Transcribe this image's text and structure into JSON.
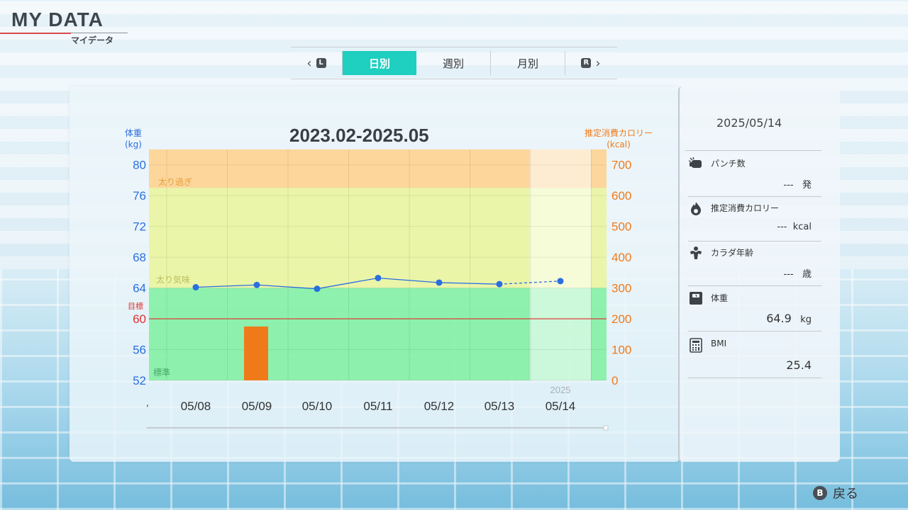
{
  "header": {
    "title": "MY DATA",
    "subtitle": "マイデータ"
  },
  "tabs": {
    "prev_key": "L",
    "next_key": "R",
    "items": [
      {
        "label": "日別",
        "active": true
      },
      {
        "label": "週別",
        "active": false
      },
      {
        "label": "月別",
        "active": false
      }
    ]
  },
  "chart": {
    "title": "2023.02-2025.05",
    "left_axis_label_1": "体重",
    "left_axis_label_2": "(kg)",
    "right_axis_label_1": "推定消費カロリー",
    "right_axis_label_2": "(kcal)",
    "goal_label": "目標",
    "year_label": "2025",
    "zone_labels": {
      "over": "太り過ぎ",
      "slight": "太り気味",
      "normal": "標準"
    },
    "colors": {
      "weight": "#2a6ee0",
      "calorie": "#f07a1a",
      "goal": "#e03030",
      "over": "#ffd08a",
      "slight": "#eaf59a",
      "normal": "#7ef0a0"
    }
  },
  "chart_data": {
    "type": "line",
    "title": "2023.02-2025.05",
    "x": [
      "05/08",
      "05/09",
      "05/10",
      "05/11",
      "05/12",
      "05/13",
      "05/14"
    ],
    "left_ticks": [
      "80",
      "76",
      "72",
      "68",
      "64",
      "60",
      "56",
      "52"
    ],
    "right_ticks": [
      "700",
      "600",
      "500",
      "400",
      "300",
      "200",
      "100",
      "0"
    ],
    "ylim_left": [
      52,
      82
    ],
    "ylim_right": [
      0,
      750
    ],
    "goal_weight": 60,
    "zones": [
      {
        "name": "太り過ぎ",
        "from": 77,
        "to": 82
      },
      {
        "name": "太り気味",
        "from": 64,
        "to": 77
      },
      {
        "name": "標準",
        "from": 52,
        "to": 64
      }
    ],
    "series": [
      {
        "name": "体重",
        "axis": "left",
        "values": [
          64.1,
          64.4,
          63.9,
          65.3,
          64.7,
          64.5,
          64.9
        ],
        "projected_from": 5
      },
      {
        "name": "推定消費カロリー",
        "axis": "right",
        "type": "bar",
        "values": [
          0,
          175,
          0,
          0,
          0,
          0,
          0
        ]
      }
    ]
  },
  "side": {
    "date": "2025/05/14",
    "items": [
      {
        "icon": "punch-icon",
        "label": "パンチ数",
        "value": "---",
        "unit": "発"
      },
      {
        "icon": "flame-icon",
        "label": "推定消費カロリー",
        "value": "---",
        "unit": "kcal"
      },
      {
        "icon": "muscle-icon",
        "label": "カラダ年齢",
        "value": "---",
        "unit": "歳"
      },
      {
        "icon": "scale-icon",
        "label": "体重",
        "value": "64.9",
        "unit": "kg"
      },
      {
        "icon": "calculator-icon",
        "label": "BMI",
        "value": "25.4",
        "unit": ""
      }
    ]
  },
  "footer": {
    "back_key": "B",
    "back_label": "戻る"
  }
}
